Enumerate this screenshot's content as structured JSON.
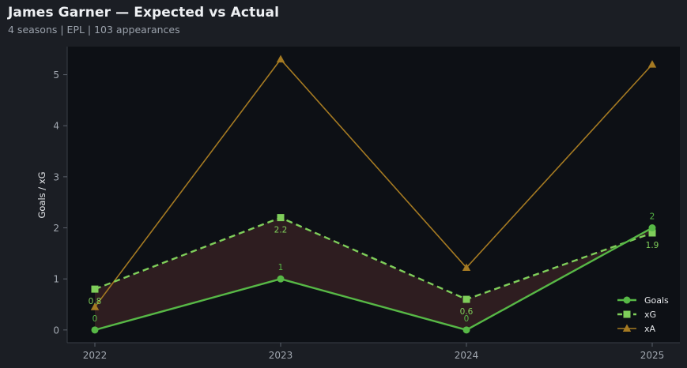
{
  "header": {
    "title": "James Garner — Expected vs Actual",
    "subtitle": "4 seasons | EPL | 103 appearances"
  },
  "chart_data": {
    "type": "line",
    "x": [
      "2022",
      "2023",
      "2024",
      "2025"
    ],
    "ylabel": "Goals / xG",
    "ylim": [
      -0.25,
      5.55
    ],
    "yticks": [
      0,
      1,
      2,
      3,
      4,
      5
    ],
    "grid": false,
    "legend_position": "bottom-right",
    "fill_between": {
      "from": "Goals",
      "to": "xG",
      "color": "#2e1d20"
    },
    "series": [
      {
        "name": "Goals",
        "values": [
          0,
          1,
          0,
          2
        ],
        "color": "#57b846",
        "marker": "circle",
        "dash": "solid",
        "labels": [
          "0",
          "1",
          "0",
          "2"
        ],
        "label_position": "above"
      },
      {
        "name": "xG",
        "values": [
          0.8,
          2.2,
          0.6,
          1.9
        ],
        "color": "#7fce5a",
        "marker": "square",
        "dash": "dashed",
        "labels": [
          "0.8",
          "2.2",
          "0.6",
          "1.9"
        ],
        "label_position": "below"
      },
      {
        "name": "xA",
        "values": [
          0.45,
          5.3,
          1.22,
          5.2
        ],
        "color": "#a57a22",
        "marker": "triangle",
        "dash": "solid"
      }
    ]
  }
}
